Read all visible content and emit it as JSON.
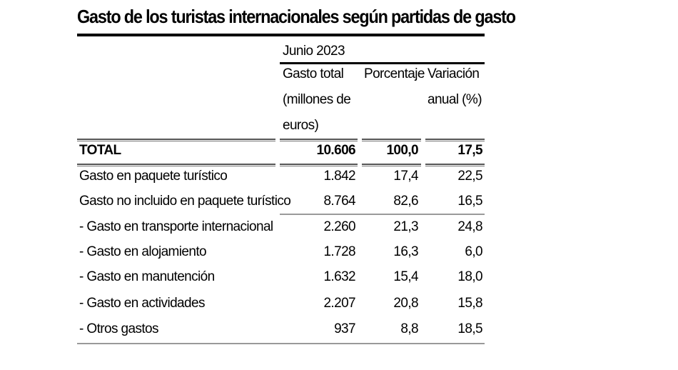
{
  "title": "Gasto de los turistas internacionales según partidas de gasto",
  "period": "Junio 2023",
  "columns": {
    "gasto_total": [
      "Gasto total",
      "(millones de",
      "euros)"
    ],
    "porcentaje": [
      "Porcentaje"
    ],
    "variacion": [
      "Variación",
      "anual (%)"
    ]
  },
  "rows": [
    {
      "label": "TOTAL",
      "gasto": "10.606",
      "porcentaje": "100,0",
      "variacion": "17,5"
    },
    {
      "label": "Gasto en paquete turístico",
      "gasto": "1.842",
      "porcentaje": "17,4",
      "variacion": "22,5"
    },
    {
      "label": "Gasto no incluido en paquete turístico",
      "gasto": "8.764",
      "porcentaje": "82,6",
      "variacion": "16,5"
    },
    {
      "label": "- Gasto en transporte internacional",
      "gasto": "2.260",
      "porcentaje": "21,3",
      "variacion": "24,8"
    },
    {
      "label": "- Gasto en alojamiento",
      "gasto": "1.728",
      "porcentaje": "16,3",
      "variacion": "6,0"
    },
    {
      "label": "- Gasto en manutención",
      "gasto": "1.632",
      "porcentaje": "15,4",
      "variacion": "18,0"
    },
    {
      "label": "- Gasto en actividades",
      "gasto": "2.207",
      "porcentaje": "20,8",
      "variacion": "15,8"
    },
    {
      "label": "- Otros gastos",
      "gasto": "937",
      "porcentaje": "8,8",
      "variacion": "18,5"
    }
  ]
}
